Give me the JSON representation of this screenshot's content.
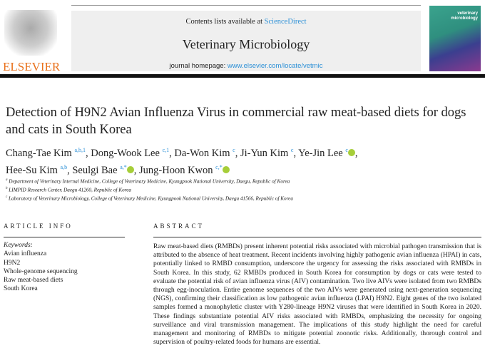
{
  "header": {
    "publisher": "ELSEVIER",
    "contents_prefix": "Contents lists available at ",
    "contents_link": "ScienceDirect",
    "journal": "Veterinary Microbiology",
    "homepage_prefix": "journal homepage: ",
    "homepage_url": "www.elsevier.com/locate/vetmic",
    "cover_title": "veterinary microbiology"
  },
  "title": "Detection of H9N2 Avian Influenza Virus in commercial raw meat-based diets for dogs and cats in South Korea",
  "authors": [
    {
      "name": "Chang-Tae Kim",
      "sup": "a,b,1",
      "orcid": false
    },
    {
      "name": "Dong-Wook Lee",
      "sup": "c,1",
      "orcid": false
    },
    {
      "name": "Da-Won Kim",
      "sup": "c",
      "orcid": false
    },
    {
      "name": "Ji-Yun Kim",
      "sup": "c",
      "orcid": false
    },
    {
      "name": "Ye-Jin Lee",
      "sup": "c",
      "orcid": true
    },
    {
      "name": "Hee-Su Kim",
      "sup": "a,b",
      "orcid": false
    },
    {
      "name": "Seulgi Bae",
      "sup": "a,*",
      "orcid": true
    },
    {
      "name": "Jung-Hoon Kwon",
      "sup": "c,*",
      "orcid": true
    }
  ],
  "affiliations": [
    {
      "mark": "a",
      "text": "Department of Veterinary Internal Medicine, College of Veterinary Medicine, Kyungpook National University, Daegu, Republic of Korea"
    },
    {
      "mark": "b",
      "text": "LIMPID Research Center, Daegu 41260, Republic of Korea"
    },
    {
      "mark": "c",
      "text": "Laboratory of Veterinary Microbiology, College of Veterinary Medicine, Kyungpook National University, Daegu 41566, Republic of Korea"
    }
  ],
  "article_info": {
    "heading": "ARTICLE INFO",
    "keywords_label": "Keywords:",
    "keywords": [
      "Avian influenza",
      "H9N2",
      "Whole-genome sequencing",
      "Raw meat-based diets",
      "South Korea"
    ]
  },
  "abstract": {
    "heading": "ABSTRACT",
    "text": "Raw meat-based diets (RMBDs) present inherent potential risks associated with microbial pathogen transmission that is attributed to the absence of heat treatment. Recent incidents involving highly pathogenic avian influenza (HPAI) in cats, potentially linked to RMBD consumption, underscore the urgency for assessing the risks associated with RMBDs in South Korea. In this study, 62 RMBDs produced in South Korea for consumption by dogs or cats were tested to evaluate the potential risk of avian influenza virus (AIV) contamination. Two live AIVs were isolated from two RMBDs through egg-inoculation. Entire genome sequences of the two AIVs were generated using next-generation sequencing (NGS), confirming their classification as low pathogenic avian influenza (LPAI) H9N2. Eight genes of the two isolated samples formed a monophyletic cluster with Y280-lineage H9N2 viruses that were identified in South Korea in 2020. These findings substantiate potential AIV risks associated with RMBDs, emphasizing the necessity for ongoing surveillance and viral transmission management. The implications of this study highlight the need for careful management and monitoring of RMBDs to mitigate potential zoonotic risks. Additionally, thorough control and supervision of poultry-related foods for humans are essential."
  },
  "colors": {
    "link": "#2a8fd6",
    "elsevier_orange": "#e9711c",
    "orcid": "#a6ce39"
  }
}
